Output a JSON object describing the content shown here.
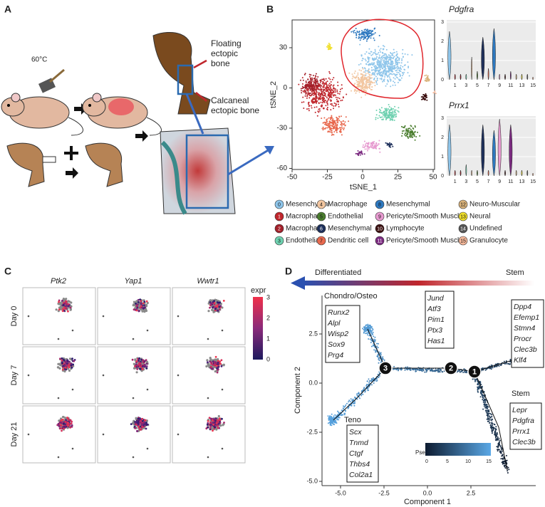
{
  "figure": {
    "panel_a": {
      "label": "A",
      "temperature": "60°C",
      "floating_label": [
        "Floating",
        "ectopic",
        "bone"
      ],
      "calcaneal_label": [
        "Calcaneal",
        "ectopic bone"
      ]
    },
    "panel_b": {
      "label": "B",
      "tsne": {
        "x_label": "tSNE_1",
        "y_label": "tSNE_2",
        "x_ticks": [
          "-50",
          "-25",
          "0",
          "25",
          "50"
        ],
        "y_ticks": [
          "30",
          "0",
          "-30",
          "-60"
        ]
      },
      "violins": [
        {
          "gene": "Pdgfra",
          "y_ticks": [
            "0",
            "1",
            "2",
            "3"
          ],
          "x_ticks": [
            "1",
            "3",
            "5",
            "7",
            "9",
            "11",
            "13",
            "15"
          ]
        },
        {
          "gene": "Prrx1",
          "y_ticks": [
            "0",
            "1",
            "2",
            "3"
          ],
          "x_ticks": [
            "1",
            "3",
            "5",
            "7",
            "9",
            "11",
            "13",
            "15"
          ]
        }
      ],
      "clusters": [
        {
          "id": "0",
          "name": "Mesenchymal",
          "color": "#8ec5ea"
        },
        {
          "id": "1",
          "name": "Macrophage",
          "color": "#c0262c"
        },
        {
          "id": "2",
          "name": "Macrophage",
          "color": "#a3202a"
        },
        {
          "id": "3",
          "name": "Endothelial",
          "color": "#6fd1b0"
        },
        {
          "id": "4",
          "name": "Macrophage",
          "color": "#f2c6a0"
        },
        {
          "id": "5",
          "name": "Endothelial",
          "color": "#4a7d2e"
        },
        {
          "id": "6",
          "name": "Mesenchymal",
          "color": "#1d2f5a"
        },
        {
          "id": "7",
          "name": "Dendritic cell",
          "color": "#e8694e"
        },
        {
          "id": "8",
          "name": "Mesenchymal",
          "color": "#2e79c0"
        },
        {
          "id": "9",
          "name": "Pericyte/Smooth Muscle",
          "color": "#e79ad0"
        },
        {
          "id": "10",
          "name": "Lymphocyte",
          "color": "#3b0f0f"
        },
        {
          "id": "11",
          "name": "Pericyte/Smooth Muscle",
          "color": "#7b2a80"
        },
        {
          "id": "12",
          "name": "Neuro-Muscular",
          "color": "#d9b27a"
        },
        {
          "id": "13",
          "name": "Neural",
          "color": "#f0df2a"
        },
        {
          "id": "14",
          "name": "Undefined",
          "color": "#555555"
        },
        {
          "id": "15",
          "name": "Granulocyte",
          "color": "#f5b89a"
        }
      ]
    },
    "panel_c": {
      "label": "C",
      "genes": [
        "Ptk2",
        "Yap1",
        "Wwtr1"
      ],
      "days": [
        "Day 0",
        "Day 7",
        "Day 21"
      ],
      "color_bar": {
        "title": "expr",
        "ticks": [
          "3",
          "2",
          "1",
          "0"
        ]
      }
    },
    "panel_d": {
      "label": "D",
      "arrow_left": "Differentiated",
      "arrow_right": "Stem",
      "x_label": "Component 1",
      "y_label": "Component 2",
      "x_ticks": [
        "-5.0",
        "-2.5",
        "0.0",
        "2.5"
      ],
      "y_ticks": [
        "2.5",
        "0.0",
        "-2.5",
        "-5.0"
      ],
      "nodes": [
        "3",
        "2",
        "1"
      ],
      "gene_boxes": [
        {
          "title": "Chondro/Osteo",
          "genes": [
            "Runx2",
            "Alpl",
            "Wisp2",
            "Sox9",
            "Prg4"
          ]
        },
        {
          "genes": [
            "Jund",
            "Atf3",
            "Pim1",
            "Ptx3",
            "Has1"
          ]
        },
        {
          "genes": [
            "Dpp4",
            "Efemp1",
            "Stmn4",
            "Procr",
            "Clec3b",
            "Klf4"
          ]
        },
        {
          "title": "Stem",
          "genes": [
            "Lepr",
            "Pdgfra",
            "Prrx1",
            "Clec3b"
          ]
        },
        {
          "title": "Teno",
          "genes": [
            "Scx",
            "Tnmd",
            "Ctgf",
            "Thbs4",
            "Col2a1"
          ]
        }
      ],
      "pseudotime": {
        "title": "Pseudotime",
        "ticks": [
          "0",
          "5",
          "10",
          "15"
        ]
      }
    }
  }
}
